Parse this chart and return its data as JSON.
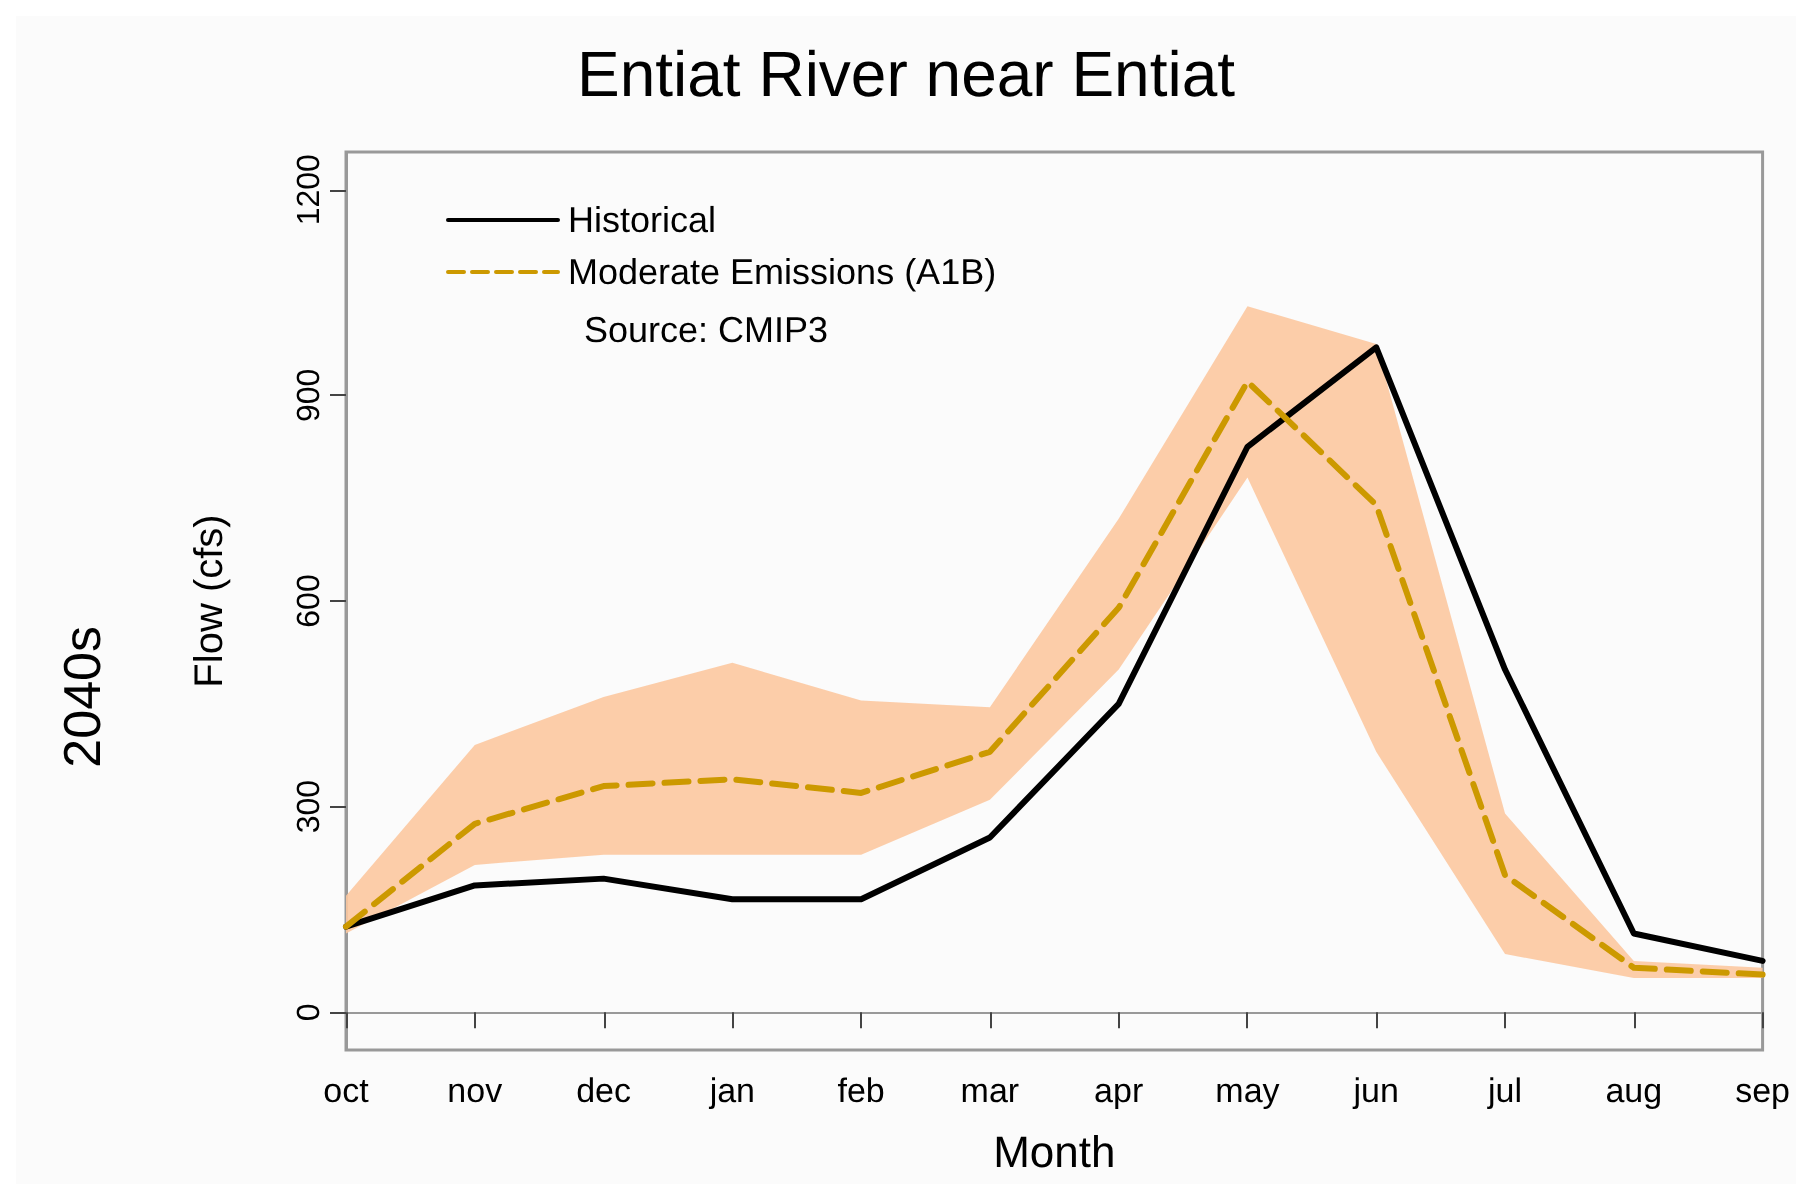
{
  "chart_data": {
    "type": "line",
    "title": "Entiat River near Entiat",
    "xlabel": "Month",
    "ylabel": "Flow (cfs)",
    "annotations": [
      "2040s",
      "Source: CMIP3"
    ],
    "categories": [
      "oct",
      "nov",
      "dec",
      "jan",
      "feb",
      "mar",
      "apr",
      "may",
      "jun",
      "jul",
      "aug",
      "sep"
    ],
    "series": [
      {
        "name": "Historical",
        "color": "#000000",
        "line_style": "solid",
        "values": [
          125,
          185,
          195,
          165,
          165,
          255,
          450,
          825,
          970,
          500,
          115,
          75
        ]
      },
      {
        "name": "Moderate Emissions (A1B)",
        "color": "#cc9900",
        "line_style": "dashed",
        "values": [
          125,
          275,
          330,
          340,
          320,
          380,
          590,
          920,
          740,
          200,
          65,
          55
        ],
        "lower": [
          115,
          215,
          230,
          230,
          230,
          310,
          500,
          780,
          380,
          85,
          50,
          50
        ],
        "upper": [
          170,
          390,
          460,
          510,
          455,
          445,
          720,
          1030,
          975,
          290,
          75,
          65
        ]
      }
    ],
    "ylim": [
      -55,
      1255
    ],
    "yticks": [
      0,
      300,
      600,
      900,
      1200
    ],
    "legend": "top left",
    "marker": "none"
  }
}
